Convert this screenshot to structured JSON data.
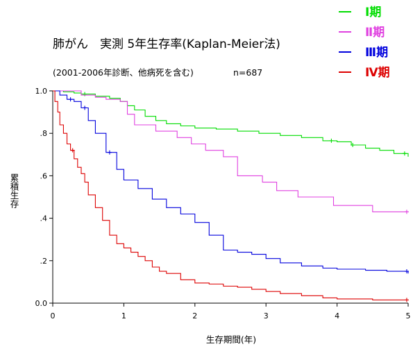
{
  "chart_data": {
    "type": "line",
    "title": "肺がん　実測 5年生存率(Kaplan-Meier法)",
    "subtitle": "(2001-2006年診断、他病死を含む)",
    "n_label": "n=687",
    "xlabel": "生存期間(年)",
    "ylabel": "累積生存",
    "xlim": [
      0,
      5
    ],
    "ylim": [
      0,
      1
    ],
    "x_ticks": [
      {
        "value": 0,
        "label": "0"
      },
      {
        "value": 1,
        "label": "1"
      },
      {
        "value": 2,
        "label": "2"
      },
      {
        "value": 3,
        "label": "3"
      },
      {
        "value": 4,
        "label": "4"
      },
      {
        "value": 5,
        "label": "5"
      }
    ],
    "y_ticks": [
      {
        "value": 0,
        "label": "0.0"
      },
      {
        "value": 0.2,
        "label": ".2"
      },
      {
        "value": 0.4,
        "label": ".4"
      },
      {
        "value": 0.6,
        "label": ".6"
      },
      {
        "value": 0.8,
        "label": ".8"
      },
      {
        "value": 1.0,
        "label": "1.0"
      }
    ],
    "grid": false,
    "legend_position": "top-right",
    "series": [
      {
        "name": "Ⅰ期",
        "color": "#00dd00",
        "points": [
          [
            0,
            1.0
          ],
          [
            0.15,
            0.995
          ],
          [
            0.3,
            0.99
          ],
          [
            0.4,
            0.985
          ],
          [
            0.6,
            0.975
          ],
          [
            0.8,
            0.965
          ],
          [
            0.95,
            0.95
          ],
          [
            1.05,
            0.93
          ],
          [
            1.15,
            0.91
          ],
          [
            1.3,
            0.88
          ],
          [
            1.45,
            0.86
          ],
          [
            1.6,
            0.845
          ],
          [
            1.8,
            0.835
          ],
          [
            2.0,
            0.825
          ],
          [
            2.3,
            0.82
          ],
          [
            2.6,
            0.81
          ],
          [
            2.9,
            0.8
          ],
          [
            3.2,
            0.79
          ],
          [
            3.5,
            0.78
          ],
          [
            3.8,
            0.765
          ],
          [
            4.0,
            0.76
          ],
          [
            4.2,
            0.745
          ],
          [
            4.4,
            0.73
          ],
          [
            4.6,
            0.72
          ],
          [
            4.8,
            0.705
          ],
          [
            5.0,
            0.69
          ]
        ],
        "censor_x": [
          0.45,
          3.92,
          4.22,
          4.95
        ]
      },
      {
        "name": "Ⅱ期",
        "color": "#e040e0",
        "points": [
          [
            0,
            1.0
          ],
          [
            0.4,
            0.98
          ],
          [
            0.6,
            0.97
          ],
          [
            0.75,
            0.96
          ],
          [
            0.95,
            0.95
          ],
          [
            1.05,
            0.92
          ],
          [
            1.05,
            0.89
          ],
          [
            1.15,
            0.87
          ],
          [
            1.15,
            0.84
          ],
          [
            1.45,
            0.84
          ],
          [
            1.45,
            0.81
          ],
          [
            1.75,
            0.81
          ],
          [
            1.75,
            0.78
          ],
          [
            1.95,
            0.78
          ],
          [
            1.95,
            0.75
          ],
          [
            2.15,
            0.75
          ],
          [
            2.15,
            0.72
          ],
          [
            2.4,
            0.72
          ],
          [
            2.4,
            0.69
          ],
          [
            2.6,
            0.69
          ],
          [
            2.6,
            0.6
          ],
          [
            2.95,
            0.6
          ],
          [
            2.95,
            0.57
          ],
          [
            3.15,
            0.57
          ],
          [
            3.15,
            0.53
          ],
          [
            3.45,
            0.53
          ],
          [
            3.45,
            0.5
          ],
          [
            3.95,
            0.5
          ],
          [
            3.95,
            0.46
          ],
          [
            4.5,
            0.46
          ],
          [
            4.5,
            0.43
          ],
          [
            5.0,
            0.43
          ]
        ],
        "censor_x": [
          4.98
        ]
      },
      {
        "name": "Ⅲ期",
        "color": "#0000dd",
        "points": [
          [
            0,
            1.0
          ],
          [
            0.1,
            0.98
          ],
          [
            0.2,
            0.96
          ],
          [
            0.3,
            0.95
          ],
          [
            0.4,
            0.92
          ],
          [
            0.5,
            0.86
          ],
          [
            0.6,
            0.8
          ],
          [
            0.75,
            0.71
          ],
          [
            0.9,
            0.63
          ],
          [
            1.0,
            0.58
          ],
          [
            1.2,
            0.54
          ],
          [
            1.4,
            0.49
          ],
          [
            1.6,
            0.45
          ],
          [
            1.8,
            0.42
          ],
          [
            2.0,
            0.38
          ],
          [
            2.2,
            0.32
          ],
          [
            2.4,
            0.25
          ],
          [
            2.6,
            0.24
          ],
          [
            2.8,
            0.23
          ],
          [
            3.0,
            0.21
          ],
          [
            3.2,
            0.19
          ],
          [
            3.5,
            0.175
          ],
          [
            3.8,
            0.165
          ],
          [
            4.0,
            0.16
          ],
          [
            4.4,
            0.155
          ],
          [
            4.7,
            0.15
          ],
          [
            5.0,
            0.14
          ]
        ],
        "censor_x": [
          0.25,
          0.45,
          0.8,
          4.98
        ]
      },
      {
        "name": "Ⅳ期",
        "color": "#dd0000",
        "points": [
          [
            0,
            1.0
          ],
          [
            0.03,
            0.95
          ],
          [
            0.07,
            0.9
          ],
          [
            0.1,
            0.84
          ],
          [
            0.15,
            0.8
          ],
          [
            0.2,
            0.75
          ],
          [
            0.25,
            0.72
          ],
          [
            0.3,
            0.68
          ],
          [
            0.35,
            0.64
          ],
          [
            0.4,
            0.61
          ],
          [
            0.45,
            0.57
          ],
          [
            0.5,
            0.51
          ],
          [
            0.6,
            0.45
          ],
          [
            0.7,
            0.39
          ],
          [
            0.8,
            0.32
          ],
          [
            0.9,
            0.28
          ],
          [
            1.0,
            0.26
          ],
          [
            1.1,
            0.24
          ],
          [
            1.2,
            0.22
          ],
          [
            1.3,
            0.2
          ],
          [
            1.4,
            0.17
          ],
          [
            1.5,
            0.15
          ],
          [
            1.6,
            0.14
          ],
          [
            1.8,
            0.11
          ],
          [
            2.0,
            0.095
          ],
          [
            2.2,
            0.09
          ],
          [
            2.4,
            0.08
          ],
          [
            2.6,
            0.075
          ],
          [
            2.8,
            0.065
          ],
          [
            3.0,
            0.055
          ],
          [
            3.2,
            0.045
          ],
          [
            3.5,
            0.035
          ],
          [
            3.8,
            0.025
          ],
          [
            4.0,
            0.02
          ],
          [
            4.5,
            0.015
          ],
          [
            5.0,
            0.015
          ]
        ],
        "censor_x": [
          0.28,
          4.98
        ]
      }
    ]
  }
}
